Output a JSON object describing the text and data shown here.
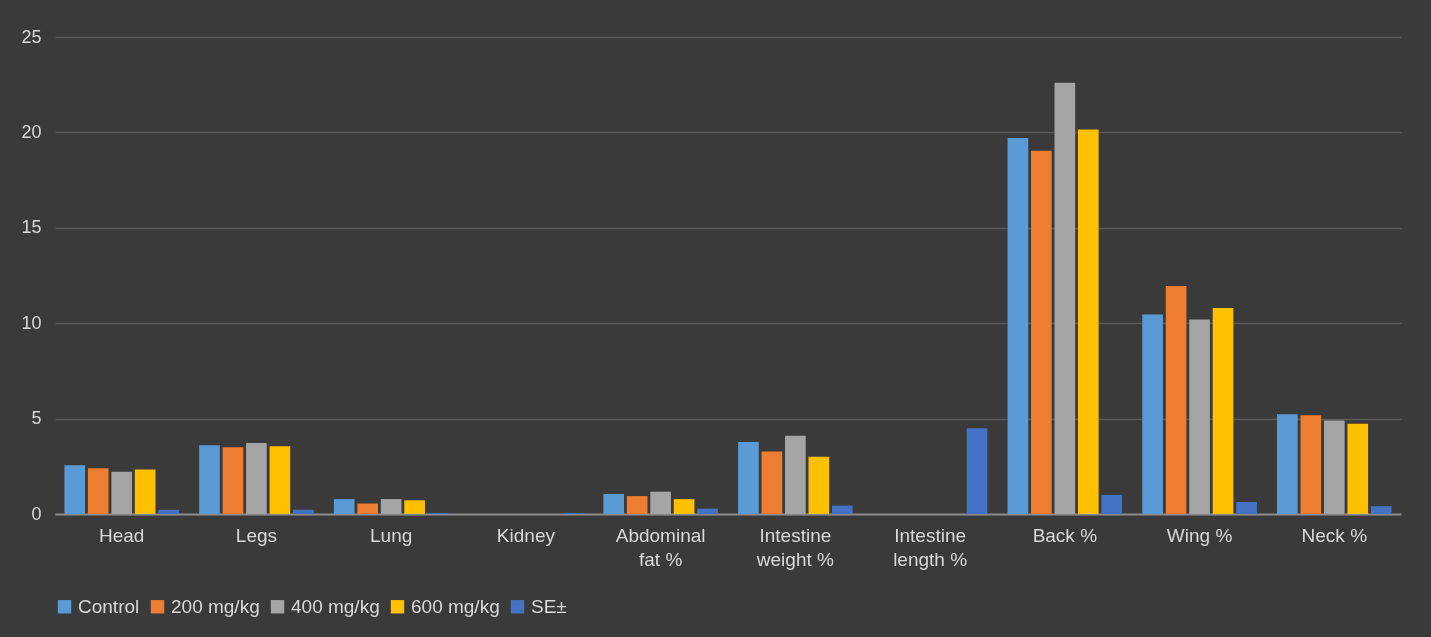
{
  "chart_data": {
    "type": "bar",
    "categories": [
      "Head",
      "Legs",
      "Lung",
      "Kidney",
      "Abdominal fat %",
      "Intestine weight %",
      "Intestine length %",
      "Back %",
      "Wing %",
      "Neck %"
    ],
    "series": [
      {
        "name": "Control",
        "color": "#5b9bd5",
        "values": [
          2.55,
          3.6,
          0.78,
          0,
          1.05,
          3.78,
          0,
          19.7,
          10.45,
          5.23
        ]
      },
      {
        "name": "200 mg/kg",
        "color": "#ed7d31",
        "values": [
          2.4,
          3.5,
          0.55,
          0,
          0.94,
          3.28,
          0,
          19.04,
          11.95,
          5.18
        ]
      },
      {
        "name": "400 mg/kg",
        "color": "#a5a5a5",
        "values": [
          2.22,
          3.72,
          0.78,
          0,
          1.17,
          4.1,
          0,
          22.6,
          10.2,
          4.9
        ]
      },
      {
        "name": "600 mg/kg",
        "color": "#ffc000",
        "values": [
          2.33,
          3.55,
          0.72,
          0,
          0.78,
          3.0,
          0,
          20.15,
          10.8,
          4.73
        ]
      },
      {
        "name": "SE±",
        "color": "#4472c4",
        "values": [
          0.22,
          0.22,
          0.05,
          0.05,
          0.28,
          0.44,
          4.5,
          1.0,
          0.63,
          0.41
        ]
      }
    ],
    "ylim": [
      0,
      25
    ],
    "yticks": [
      0,
      5,
      10,
      15,
      20,
      25
    ],
    "grid": "y",
    "legend": "bottom"
  }
}
